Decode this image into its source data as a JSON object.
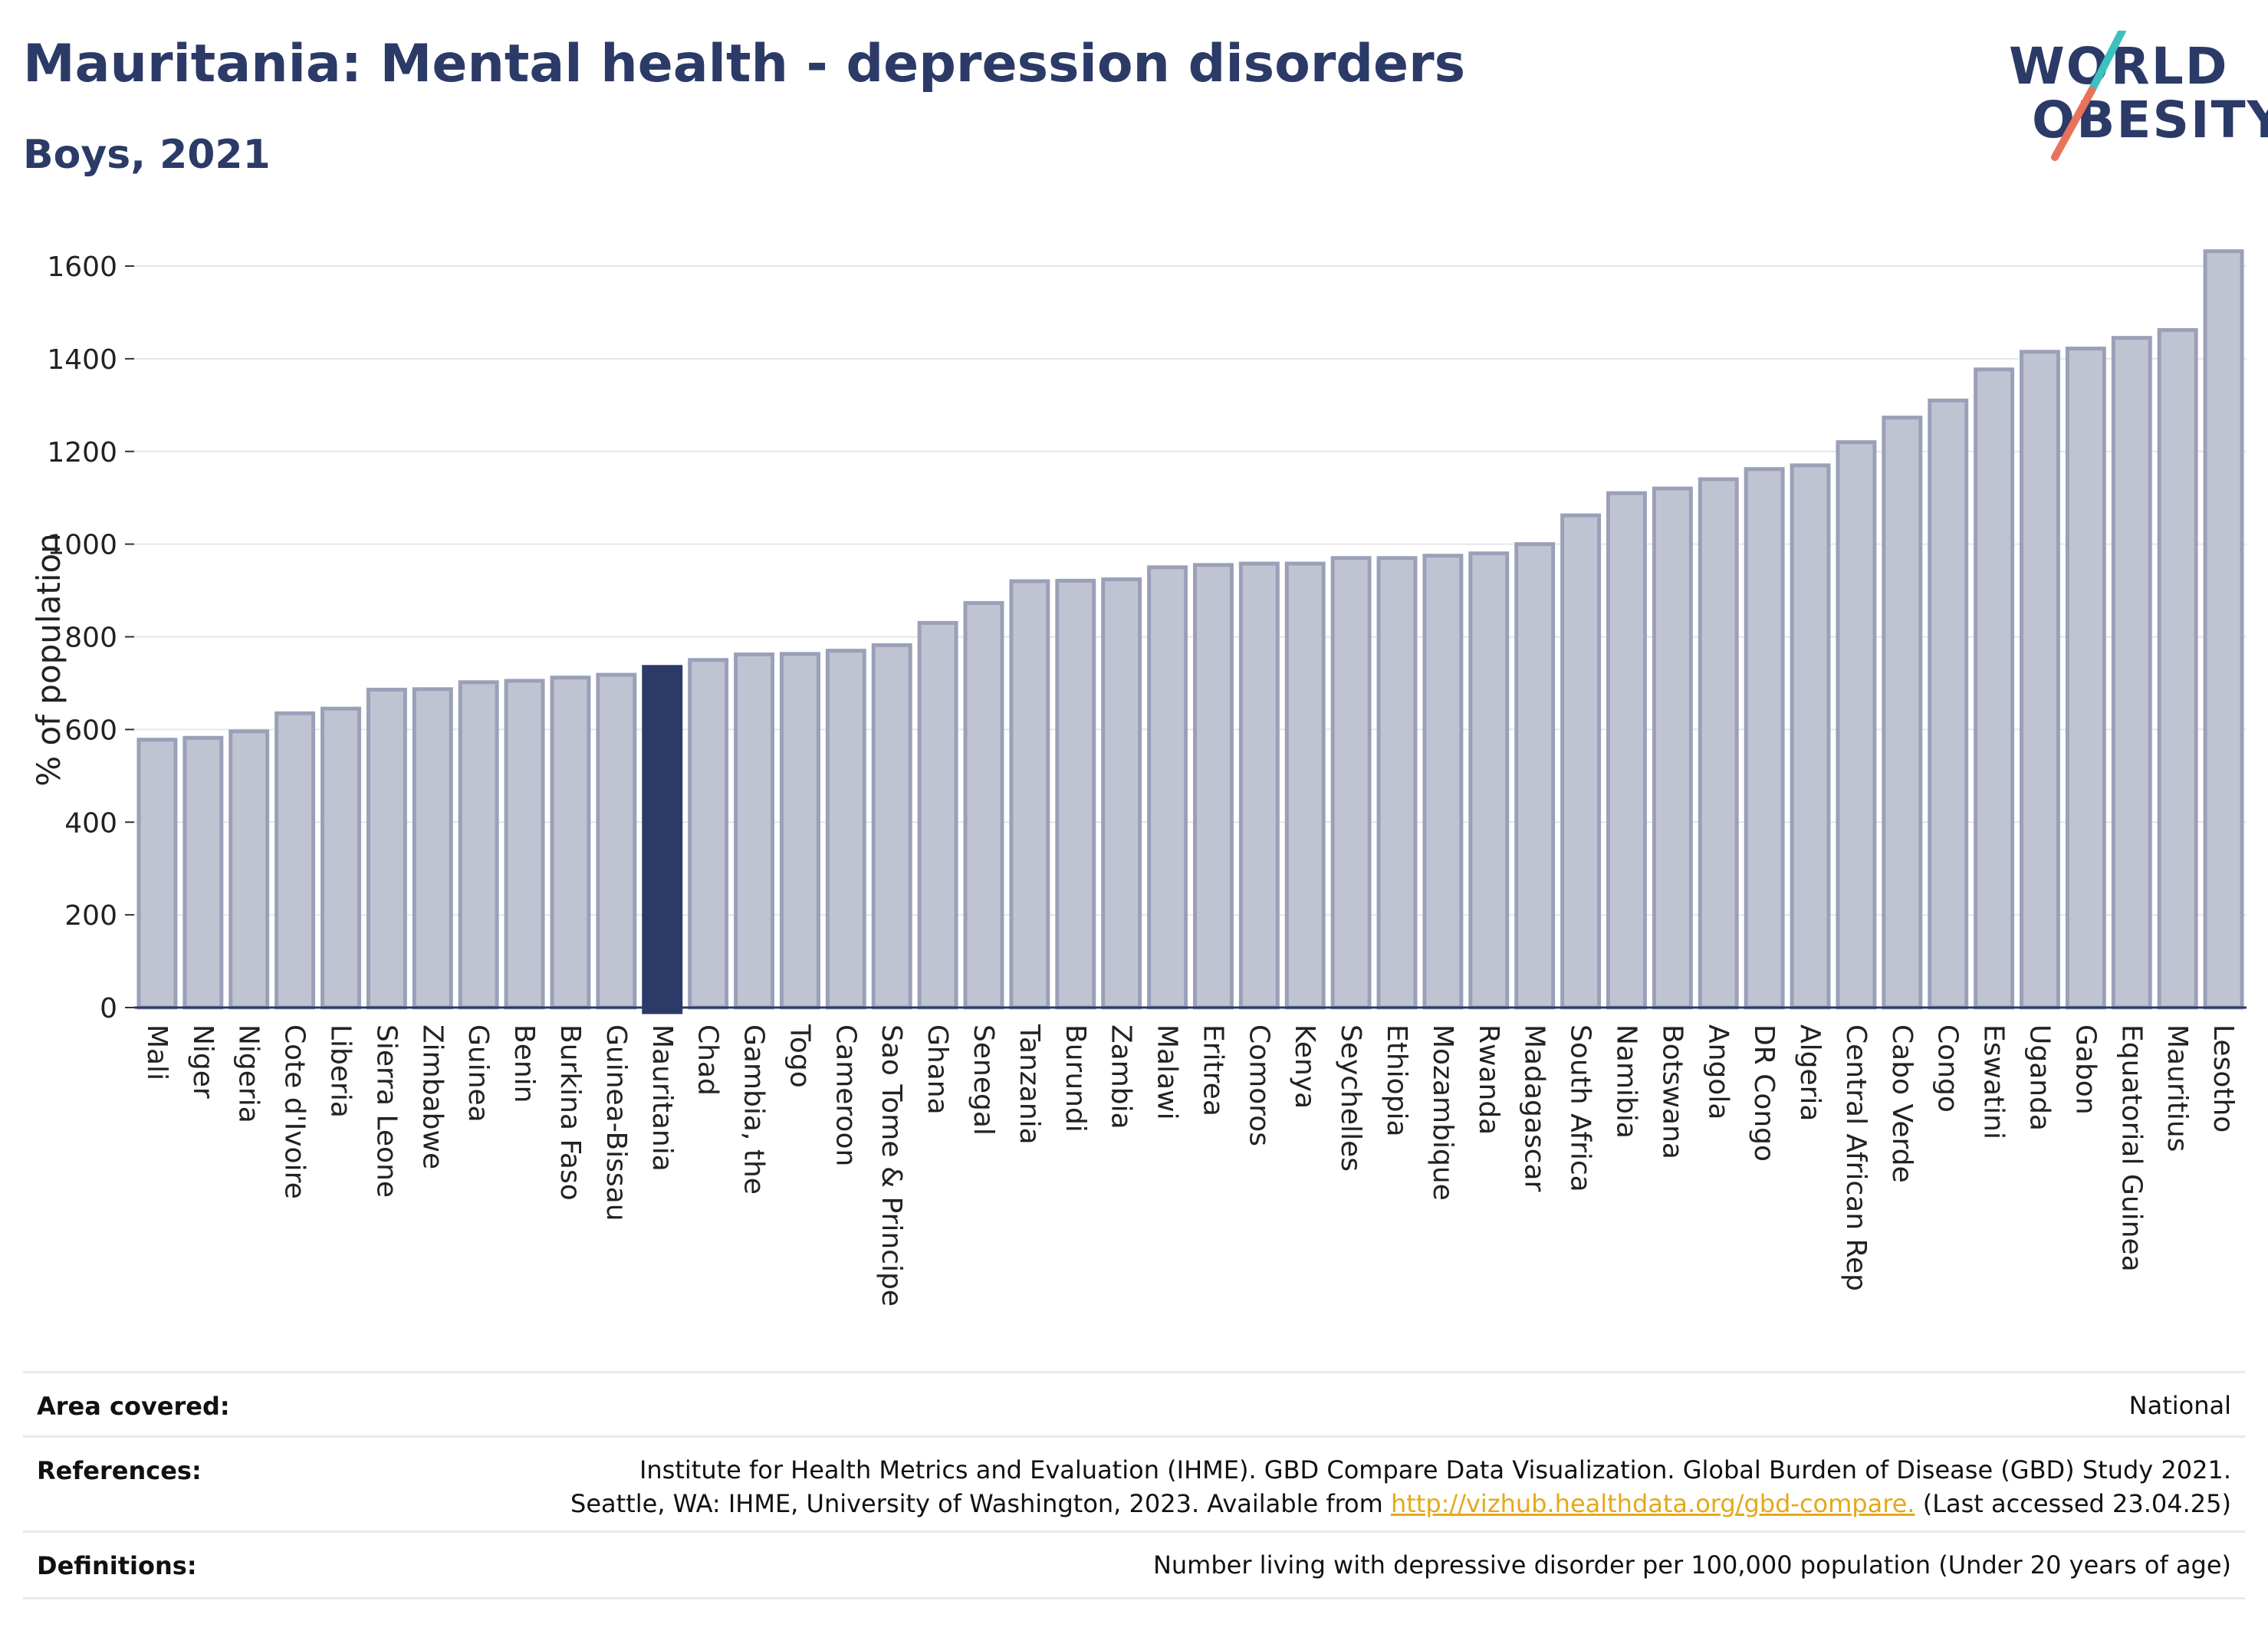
{
  "header": {
    "title": "Mauritania: Mental health - depression disorders",
    "subtitle": "Boys, 2021"
  },
  "logo": {
    "line1": "WORLD",
    "line2": "OBESITY",
    "slash_colors": [
      "#3cc0c0",
      "#e8735a"
    ]
  },
  "colors": {
    "bar_fill": "#c0c4d2",
    "bar_stroke": "#9aa0b8",
    "highlight": "#2b3a67",
    "grid": "#e6e6e6",
    "axis": "#2b3a67"
  },
  "chart_data": {
    "type": "bar",
    "ylabel": "% of population",
    "ylim": [
      0,
      1600
    ],
    "yticks": [
      0,
      200,
      400,
      600,
      800,
      1000,
      1200,
      1400,
      1600
    ],
    "grid": true,
    "highlight": "Mauritania",
    "categories": [
      "Mali",
      "Niger",
      "Nigeria",
      "Cote d'Ivoire",
      "Liberia",
      "Sierra Leone",
      "Zimbabwe",
      "Guinea",
      "Benin",
      "Burkina Faso",
      "Guinea-Bissau",
      "Mauritania",
      "Chad",
      "Gambia, the",
      "Togo",
      "Cameroon",
      "Sao Tome & Principe",
      "Ghana",
      "Senegal",
      "Tanzania",
      "Burundi",
      "Zambia",
      "Malawi",
      "Eritrea",
      "Comoros",
      "Kenya",
      "Seychelles",
      "Ethiopia",
      "Mozambique",
      "Rwanda",
      "Madagascar",
      "South Africa",
      "Namibia",
      "Botswana",
      "Angola",
      "DR Congo",
      "Algeria",
      "Central African Rep",
      "Cabo Verde",
      "Congo",
      "Eswatini",
      "Uganda",
      "Gabon",
      "Equatorial Guinea",
      "Mauritius",
      "Lesotho"
    ],
    "values": [
      578,
      582,
      596,
      635,
      645,
      686,
      687,
      702,
      705,
      712,
      718,
      735,
      750,
      762,
      763,
      770,
      782,
      830,
      873,
      920,
      921,
      924,
      950,
      955,
      958,
      958,
      970,
      970,
      975,
      980,
      1000,
      1062,
      1110,
      1120,
      1140,
      1162,
      1170,
      1220,
      1273,
      1310,
      1377,
      1415,
      1422,
      1445,
      1462,
      1632
    ]
  },
  "info": {
    "area_label": "Area covered:",
    "area_value": "National",
    "references_label": "References:",
    "references_line1": "Institute for Health Metrics and Evaluation (IHME). GBD Compare Data Visualization. Global Burden of Disease (GBD) Study 2021.",
    "references_line2_pre": "Seattle, WA: IHME, University of Washington, 2023. Available from ",
    "references_link": "http://vizhub.healthdata.org/gbd-compare.",
    "references_line2_post": " (Last accessed 23.04.25)",
    "definitions_label": "Definitions:",
    "definitions_value": "Number living with depressive disorder per 100,000 population (Under 20 years of age)"
  }
}
